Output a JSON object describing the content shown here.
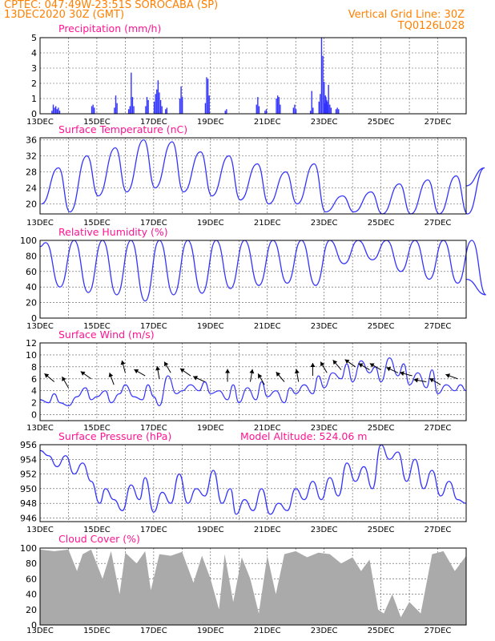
{
  "header": {
    "line1": "CPTEC:    047:49W-23:51S   SOROCABA (SP)",
    "line2": "13DEC2020 30Z (GMT)",
    "grid_line": "Vertical Grid Line: 30Z",
    "model_code": "TQ0126L028"
  },
  "colors": {
    "header": "#ff8000",
    "title": "#ff1493",
    "series": "#3333ff",
    "cloud": "#aaaaaa",
    "arrow": "#000000"
  },
  "chart_data": [
    {
      "type": "bar",
      "title": "Precipitation (mm/h)",
      "x_ticks": [
        "13DEC",
        "15DEC",
        "17DEC",
        "19DEC",
        "21DEC",
        "23DEC",
        "25DEC",
        "27DEC"
      ],
      "ylim": [
        0,
        5
      ],
      "y_ticks": [
        0,
        1,
        2,
        3,
        4,
        5
      ],
      "events": [
        {
          "day": 13.4,
          "values": [
            0.2,
            0.6,
            0.4,
            0.5,
            0.3,
            0.4,
            0.2
          ]
        },
        {
          "day": 14.8,
          "values": [
            0.5,
            0.6,
            0.4
          ]
        },
        {
          "day": 15.6,
          "values": [
            0.4,
            1.2,
            0.7
          ]
        },
        {
          "day": 16.1,
          "values": [
            0.3,
            0.5,
            2.7,
            1.1,
            0.5
          ]
        },
        {
          "day": 16.7,
          "values": [
            0.5,
            1.1,
            0.9
          ]
        },
        {
          "day": 17.0,
          "values": [
            0.8,
            1.3,
            1.6,
            2.2,
            1.4,
            0.9,
            0.5
          ]
        },
        {
          "day": 17.4,
          "values": [
            0.3,
            0.4
          ]
        },
        {
          "day": 17.9,
          "values": [
            1.0,
            1.8,
            1.1
          ]
        },
        {
          "day": 18.8,
          "values": [
            0.7,
            2.4,
            2.3,
            1.2
          ]
        },
        {
          "day": 19.5,
          "values": [
            0.2,
            0.3
          ]
        },
        {
          "day": 20.6,
          "values": [
            0.6,
            1.1,
            0.5
          ]
        },
        {
          "day": 20.9,
          "values": [
            0.2,
            0.3
          ]
        },
        {
          "day": 21.3,
          "values": [
            1.0,
            1.2,
            1.1,
            0.6
          ]
        },
        {
          "day": 21.9,
          "values": [
            0.4,
            0.6,
            0.3
          ]
        },
        {
          "day": 22.5,
          "values": [
            0.2,
            1.5,
            0.4
          ]
        },
        {
          "day": 22.8,
          "values": [
            0.8,
            1.3,
            5.0,
            3.8,
            2.1,
            1.2,
            0.9,
            0.6
          ]
        },
        {
          "day": 23.0,
          "values": [
            0.7,
            1.1,
            0.8,
            1.9,
            0.6,
            0.4
          ]
        },
        {
          "day": 23.4,
          "values": [
            0.3,
            0.4,
            0.3
          ]
        }
      ]
    },
    {
      "type": "line",
      "title": "Surface Temperature (nC)",
      "x_ticks": [
        "13DEC",
        "15DEC",
        "17DEC",
        "19DEC",
        "21DEC",
        "23DEC",
        "25DEC",
        "27DEC"
      ],
      "ylim": [
        17.5,
        36.5
      ],
      "y_ticks": [
        20,
        24,
        28,
        32,
        36
      ],
      "minima": [
        20,
        18,
        22,
        23,
        24,
        23,
        22,
        21,
        20,
        20,
        18,
        18,
        17.5,
        17.5,
        17.5,
        17.5
      ],
      "maxima": [
        29,
        32,
        34,
        36,
        35.5,
        33,
        32,
        30,
        28,
        30,
        22,
        23,
        25,
        26,
        27,
        29
      ]
    },
    {
      "type": "line",
      "title": "Relative Humidity (%)",
      "x_ticks": [
        "13DEC",
        "15DEC",
        "17DEC",
        "19DEC",
        "21DEC",
        "23DEC",
        "25DEC",
        "27DEC"
      ],
      "ylim": [
        0,
        100
      ],
      "y_ticks": [
        0,
        20,
        40,
        60,
        80,
        100
      ],
      "maxima": [
        97,
        100,
        100,
        100,
        100,
        100,
        100,
        100,
        100,
        100,
        100,
        100,
        100,
        100,
        100,
        100
      ],
      "minima": [
        40,
        33,
        30,
        22,
        30,
        32,
        38,
        42,
        45,
        42,
        70,
        75,
        60,
        50,
        45,
        30
      ]
    },
    {
      "type": "line",
      "title": "Surface Wind (m/s)",
      "x_ticks": [
        "13DEC",
        "15DEC",
        "17DEC",
        "19DEC",
        "21DEC",
        "23DEC",
        "25DEC",
        "27DEC"
      ],
      "ylim": [
        -1,
        12
      ],
      "y_ticks": [
        0,
        2,
        4,
        6,
        8,
        10,
        12
      ],
      "points": [
        [
          13,
          2.5
        ],
        [
          13.3,
          2.0
        ],
        [
          13.5,
          3.5
        ],
        [
          13.7,
          2.0
        ],
        [
          14.0,
          1.5
        ],
        [
          14.3,
          3.0
        ],
        [
          14.6,
          4.5
        ],
        [
          14.8,
          2.5
        ],
        [
          15.0,
          3.0
        ],
        [
          15.3,
          4.0
        ],
        [
          15.5,
          2.0
        ],
        [
          15.8,
          3.5
        ],
        [
          16.0,
          5.0
        ],
        [
          16.3,
          3.0
        ],
        [
          16.6,
          2.5
        ],
        [
          16.8,
          5.0
        ],
        [
          17.0,
          3.0
        ],
        [
          17.2,
          1.5
        ],
        [
          17.5,
          6.5
        ],
        [
          17.8,
          3.5
        ],
        [
          18.0,
          4.0
        ],
        [
          18.3,
          5.0
        ],
        [
          18.6,
          4.0
        ],
        [
          18.8,
          5.5
        ],
        [
          19.0,
          3.5
        ],
        [
          19.3,
          4.0
        ],
        [
          19.6,
          2.5
        ],
        [
          19.8,
          5.0
        ],
        [
          20.0,
          2.0
        ],
        [
          20.3,
          4.5
        ],
        [
          20.6,
          2.5
        ],
        [
          20.8,
          5.5
        ],
        [
          21.0,
          3.0
        ],
        [
          21.3,
          4.0
        ],
        [
          21.6,
          2.0
        ],
        [
          21.8,
          4.5
        ],
        [
          22.0,
          3.5
        ],
        [
          22.3,
          5.0
        ],
        [
          22.6,
          3.5
        ],
        [
          22.8,
          6.5
        ],
        [
          23.0,
          4.5
        ],
        [
          23.3,
          7.0
        ],
        [
          23.6,
          6.0
        ],
        [
          23.8,
          8.5
        ],
        [
          24.0,
          5.5
        ],
        [
          24.3,
          9.0
        ],
        [
          24.6,
          7.0
        ],
        [
          24.8,
          8.0
        ],
        [
          25.0,
          5.5
        ],
        [
          25.3,
          9.5
        ],
        [
          25.6,
          6.5
        ],
        [
          25.8,
          8.5
        ],
        [
          26.0,
          5.0
        ],
        [
          26.3,
          7.0
        ],
        [
          26.6,
          4.5
        ],
        [
          26.8,
          7.5
        ],
        [
          27.0,
          3.5
        ],
        [
          27.3,
          5.0
        ],
        [
          27.6,
          4.0
        ],
        [
          27.8,
          5.0
        ],
        [
          28.0,
          4.0
        ]
      ],
      "arrows": [
        [
          13.5,
          5.5,
          -40
        ],
        [
          14.0,
          4.5,
          -60
        ],
        [
          14.8,
          6.0,
          -35
        ],
        [
          15.6,
          5.0,
          -70
        ],
        [
          16.0,
          7.0,
          -75
        ],
        [
          16.7,
          6.5,
          -30
        ],
        [
          17.2,
          6.0,
          -80
        ],
        [
          17.6,
          7.0,
          -60
        ],
        [
          18.3,
          6.5,
          -35
        ],
        [
          18.8,
          5.5,
          -25
        ],
        [
          19.6,
          5.5,
          -90
        ],
        [
          20.4,
          5.5,
          -100
        ],
        [
          20.9,
          5.0,
          -60
        ],
        [
          21.6,
          5.5,
          -50
        ],
        [
          22.1,
          5.5,
          -80
        ],
        [
          22.6,
          6.5,
          -90
        ],
        [
          23.1,
          7.0,
          -60
        ],
        [
          23.6,
          7.5,
          -50
        ],
        [
          24.1,
          8.0,
          -35
        ],
        [
          24.6,
          7.5,
          -30
        ],
        [
          25.0,
          7.5,
          -30
        ],
        [
          25.6,
          7.0,
          -25
        ],
        [
          26.1,
          6.5,
          -15
        ],
        [
          26.6,
          5.5,
          -10
        ],
        [
          27.1,
          5.0,
          -30
        ],
        [
          27.7,
          6.0,
          -20
        ]
      ]
    },
    {
      "type": "line",
      "title": "Surface Pressure (hPa)",
      "annotation": "Model Altitude: 524.06 m",
      "x_ticks": [
        "13DEC",
        "15DEC",
        "17DEC",
        "19DEC",
        "21DEC",
        "23DEC",
        "25DEC",
        "27DEC"
      ],
      "ylim": [
        945.5,
        956
      ],
      "y_ticks": [
        946,
        948,
        950,
        952,
        954,
        956
      ],
      "points": [
        [
          13,
          955.2
        ],
        [
          13.3,
          954.5
        ],
        [
          13.6,
          953
        ],
        [
          13.9,
          954.5
        ],
        [
          14.2,
          952
        ],
        [
          14.5,
          953.5
        ],
        [
          14.8,
          951
        ],
        [
          15.1,
          948
        ],
        [
          15.3,
          950
        ],
        [
          15.6,
          948.5
        ],
        [
          15.9,
          947
        ],
        [
          16.2,
          950.5
        ],
        [
          16.5,
          948.5
        ],
        [
          16.7,
          951.5
        ],
        [
          17.0,
          946.8
        ],
        [
          17.3,
          949.5
        ],
        [
          17.6,
          948
        ],
        [
          17.9,
          952
        ],
        [
          18.2,
          948
        ],
        [
          18.5,
          950
        ],
        [
          18.8,
          949
        ],
        [
          19.1,
          952.5
        ],
        [
          19.4,
          948
        ],
        [
          19.7,
          950
        ],
        [
          19.9,
          946.5
        ],
        [
          20.2,
          948.5
        ],
        [
          20.5,
          947
        ],
        [
          20.8,
          950
        ],
        [
          21.1,
          946.5
        ],
        [
          21.4,
          948
        ],
        [
          21.7,
          947
        ],
        [
          22.0,
          950
        ],
        [
          22.3,
          948.5
        ],
        [
          22.6,
          951
        ],
        [
          22.9,
          948.5
        ],
        [
          23.2,
          951.5
        ],
        [
          23.5,
          949
        ],
        [
          23.8,
          953.5
        ],
        [
          24.1,
          951
        ],
        [
          24.4,
          953
        ],
        [
          24.7,
          950
        ],
        [
          25.0,
          956
        ],
        [
          25.3,
          954
        ],
        [
          25.6,
          955
        ],
        [
          25.9,
          951
        ],
        [
          26.2,
          954
        ],
        [
          26.5,
          950
        ],
        [
          26.8,
          952.5
        ],
        [
          27.1,
          949
        ],
        [
          27.4,
          951
        ],
        [
          27.7,
          948.5
        ],
        [
          28.0,
          948
        ]
      ]
    },
    {
      "type": "area",
      "title": "Cloud Cover (%)",
      "x_ticks": [
        "13DEC",
        "15DEC",
        "17DEC",
        "19DEC",
        "21DEC",
        "23DEC",
        "25DEC",
        "27DEC"
      ],
      "ylim": [
        0,
        100
      ],
      "y_ticks": [
        0,
        20,
        40,
        60,
        80,
        100
      ],
      "points": [
        [
          13,
          98
        ],
        [
          13.5,
          96
        ],
        [
          14.0,
          98
        ],
        [
          14.3,
          70
        ],
        [
          14.5,
          92
        ],
        [
          14.8,
          98
        ],
        [
          15.2,
          60
        ],
        [
          15.5,
          96
        ],
        [
          15.8,
          40
        ],
        [
          16.0,
          94
        ],
        [
          16.4,
          80
        ],
        [
          16.7,
          96
        ],
        [
          16.9,
          45
        ],
        [
          17.2,
          92
        ],
        [
          17.6,
          90
        ],
        [
          18.0,
          95
        ],
        [
          18.4,
          55
        ],
        [
          18.7,
          90
        ],
        [
          19.0,
          60
        ],
        [
          19.3,
          20
        ],
        [
          19.5,
          92
        ],
        [
          19.8,
          30
        ],
        [
          20.1,
          88
        ],
        [
          20.4,
          60
        ],
        [
          20.7,
          15
        ],
        [
          21.0,
          90
        ],
        [
          21.3,
          40
        ],
        [
          21.6,
          92
        ],
        [
          22.0,
          96
        ],
        [
          22.4,
          88
        ],
        [
          22.8,
          94
        ],
        [
          23.2,
          92
        ],
        [
          23.6,
          80
        ],
        [
          24.0,
          88
        ],
        [
          24.3,
          70
        ],
        [
          24.6,
          85
        ],
        [
          24.9,
          20
        ],
        [
          25.1,
          15
        ],
        [
          25.4,
          40
        ],
        [
          25.7,
          10
        ],
        [
          26.0,
          30
        ],
        [
          26.4,
          15
        ],
        [
          26.8,
          92
        ],
        [
          27.2,
          96
        ],
        [
          27.6,
          70
        ],
        [
          28.0,
          90
        ]
      ]
    }
  ]
}
